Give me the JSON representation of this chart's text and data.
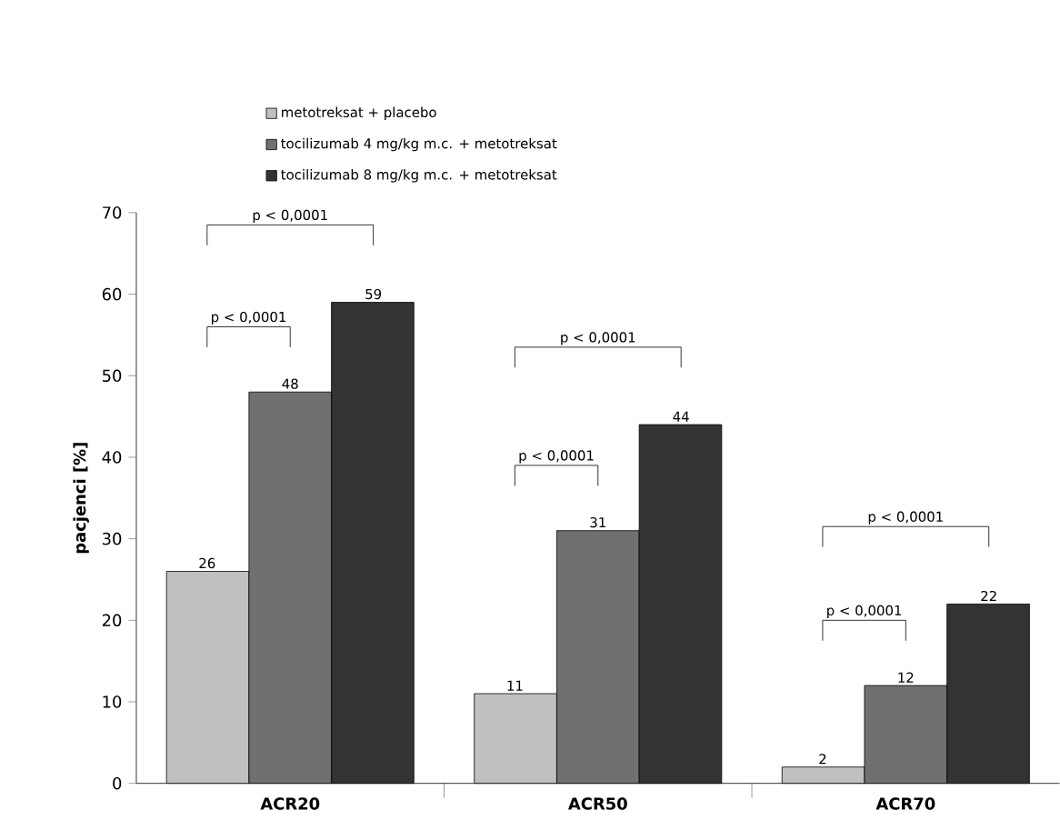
{
  "chart_data": {
    "type": "bar",
    "ylabel": "pacjenci [%]",
    "categories": [
      "ACR20",
      "ACR50",
      "ACR70"
    ],
    "series": [
      {
        "name": "metotreksat + placebo",
        "color": "#c0c0c0",
        "values": [
          26,
          11,
          2
        ]
      },
      {
        "name": "tocilizumab 4 mg/kg m.c. + metotreksat",
        "color": "#707070",
        "values": [
          48,
          31,
          12
        ]
      },
      {
        "name": "tocilizumab 8 mg/kg m.c. + metotreksat",
        "color": "#333333",
        "values": [
          59,
          44,
          22
        ]
      }
    ],
    "ylim": [
      0,
      70
    ],
    "yticks": [
      0,
      10,
      20,
      30,
      40,
      50,
      60,
      70
    ],
    "data_labels": true,
    "legend": "top",
    "grid": false,
    "annotations": [
      "p < 0,0001",
      "p < 0,0001",
      "p < 0,0001",
      "p < 0,0001",
      "p < 0,0001",
      "p < 0,0001"
    ]
  }
}
